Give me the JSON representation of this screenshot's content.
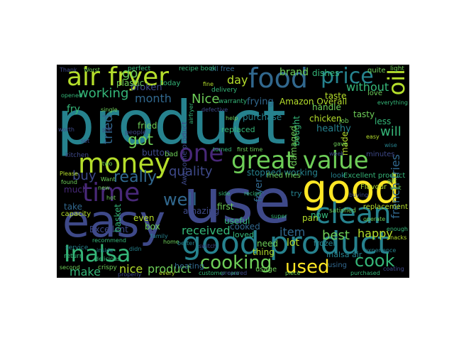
{
  "wordcloud": {
    "background": "#000000",
    "colormap": [
      "#440154",
      "#482878",
      "#3e4989",
      "#31688e",
      "#26828e",
      "#1f9e89",
      "#35b779",
      "#6ece58",
      "#b5de2b",
      "#fde725"
    ],
    "words": [
      {
        "text": "product",
        "color": "#26828e"
      },
      {
        "text": "use",
        "color": "#3e4989"
      },
      {
        "text": "good",
        "color": "#fde725"
      },
      {
        "text": "easy",
        "color": "#3e4989"
      },
      {
        "text": "good product",
        "color": "#26828e"
      },
      {
        "text": "money",
        "color": "#b5de2b"
      },
      {
        "text": "great value",
        "color": "#6ece58"
      },
      {
        "text": "air fryer",
        "color": "#b5de2b"
      },
      {
        "text": "food",
        "color": "#31688e"
      },
      {
        "text": "price",
        "color": "#26828e"
      },
      {
        "text": "time",
        "color": "#482878"
      },
      {
        "text": "clean",
        "color": "#26828e"
      },
      {
        "text": "Inalsa",
        "color": "#35b779"
      },
      {
        "text": "one",
        "color": "#482878"
      },
      {
        "text": "oil",
        "color": "#b5de2b"
      },
      {
        "text": "cooking",
        "color": "#6ece58"
      },
      {
        "text": "used",
        "color": "#fde725"
      },
      {
        "text": "cook",
        "color": "#35b779"
      },
      {
        "text": "well",
        "color": "#31688e"
      },
      {
        "text": "got",
        "color": "#6ece58"
      },
      {
        "text": "working",
        "color": "#35b779"
      },
      {
        "text": "really",
        "color": "#31688e"
      },
      {
        "text": "quality",
        "color": "#3e4989"
      },
      {
        "text": "month",
        "color": "#31688e"
      },
      {
        "text": "Nice",
        "color": "#6ece58"
      },
      {
        "text": "go",
        "color": "#6ece58"
      },
      {
        "text": "tried",
        "color": "#31688e"
      },
      {
        "text": "buy",
        "color": "#3e4989"
      },
      {
        "text": "will",
        "color": "#35b779"
      },
      {
        "text": "french fries",
        "color": "#31688e"
      },
      {
        "text": "received",
        "color": "#35b779"
      },
      {
        "text": "item",
        "color": "#31688e"
      },
      {
        "text": "best",
        "color": "#6ece58"
      },
      {
        "text": "happy",
        "color": "#b5de2b"
      },
      {
        "text": "make",
        "color": "#35b779"
      },
      {
        "text": "nice",
        "color": "#b5de2b"
      },
      {
        "text": "product",
        "color": "#6ece58"
      },
      {
        "text": "lot",
        "color": "#b5de2b"
      },
      {
        "text": "without",
        "color": "#35b779"
      },
      {
        "text": "brand",
        "color": "#6ece58"
      },
      {
        "text": "day",
        "color": "#b5de2b"
      },
      {
        "text": "stopped working",
        "color": "#26828e"
      },
      {
        "text": "Amazon Overall",
        "color": "#b5de2b"
      },
      {
        "text": "dishes",
        "color": "#35b779"
      },
      {
        "text": "oil free",
        "color": "#31688e"
      },
      {
        "text": "recipe book",
        "color": "#35b779"
      },
      {
        "text": "light",
        "color": "#6ece58"
      },
      {
        "text": "perfect",
        "color": "#35b779"
      },
      {
        "text": "broken",
        "color": "#3e4989"
      },
      {
        "text": "plastic",
        "color": "#6ece58"
      },
      {
        "text": "frying",
        "color": "#31688e"
      },
      {
        "text": "taste",
        "color": "#b5de2b"
      },
      {
        "text": "handle",
        "color": "#6ece58"
      },
      {
        "text": "healthy",
        "color": "#26828e"
      },
      {
        "text": "chicken",
        "color": "#b5de2b"
      },
      {
        "text": "tasty",
        "color": "#6ece58"
      },
      {
        "text": "bought",
        "color": "#35b779"
      },
      {
        "text": "purchase",
        "color": "#26828e"
      },
      {
        "text": "fry",
        "color": "#35b779"
      },
      {
        "text": "fried",
        "color": "#6ece58"
      },
      {
        "text": "people",
        "color": "#3e4989"
      },
      {
        "text": "button",
        "color": "#3e4989"
      },
      {
        "text": "bad",
        "color": "#6ece58"
      },
      {
        "text": "even",
        "color": "#b5de2b"
      },
      {
        "text": "box",
        "color": "#6ece58"
      },
      {
        "text": "amazing",
        "color": "#3e4989"
      },
      {
        "text": "fryer",
        "color": "#31688e"
      },
      {
        "text": "first",
        "color": "#6ece58"
      },
      {
        "text": "useful",
        "color": "#35b779"
      },
      {
        "text": "Excellent",
        "color": "#3e4989"
      },
      {
        "text": "much",
        "color": "#482878"
      },
      {
        "text": "take",
        "color": "#31688e"
      },
      {
        "text": "capacity",
        "color": "#b5de2b"
      },
      {
        "text": "basket",
        "color": "#35b779"
      },
      {
        "text": "cooked",
        "color": "#31688e"
      },
      {
        "text": "loved",
        "color": "#35b779"
      },
      {
        "text": "need",
        "color": "#6ece58"
      },
      {
        "text": "thing",
        "color": "#b5de2b"
      },
      {
        "text": "heating",
        "color": "#31688e"
      },
      {
        "text": "usage",
        "color": "#6ece58"
      },
      {
        "text": "crispy",
        "color": "#6ece58"
      },
      {
        "text": "using",
        "color": "#31688e"
      },
      {
        "text": "Inalsa air",
        "color": "#26828e"
      },
      {
        "text": "pan",
        "color": "#b5de2b"
      },
      {
        "text": "frozen",
        "color": "#26828e"
      },
      {
        "text": "now",
        "color": "#35b779"
      },
      {
        "text": "satisfied",
        "color": "#6ece58"
      },
      {
        "text": "look",
        "color": "#26828e"
      },
      {
        "text": "Excellent product",
        "color": "#35b779"
      },
      {
        "text": "try",
        "color": "#26828e"
      },
      {
        "text": "minutes",
        "color": "#3e4989"
      },
      {
        "text": "replacement",
        "color": "#b5de2b"
      },
      {
        "text": "Flavour",
        "color": "#b5de2b"
      },
      {
        "text": "fried fries",
        "color": "#6ece58"
      },
      {
        "text": "replaced",
        "color": "#35b779"
      },
      {
        "text": "damaged",
        "color": "#6ece58"
      },
      {
        "text": "made",
        "color": "#b5de2b"
      },
      {
        "text": "less",
        "color": "#35b779"
      },
      {
        "text": "job",
        "color": "#6ece58"
      },
      {
        "text": "Awesome product",
        "color": "#3e4989"
      },
      {
        "text": "quite",
        "color": "#6ece58"
      },
      {
        "text": "love",
        "color": "#6ece58"
      },
      {
        "text": "delivery",
        "color": "#35b779"
      },
      {
        "text": "warranty",
        "color": "#35b779"
      },
      {
        "text": "service",
        "color": "#26828e"
      },
      {
        "text": "return",
        "color": "#35b779"
      },
      {
        "text": "kitchen",
        "color": "#3e4989"
      },
      {
        "text": "Please",
        "color": "#b5de2b"
      },
      {
        "text": "found",
        "color": "#6ece58"
      },
      {
        "text": "worth",
        "color": "#3e4989"
      },
      {
        "text": "single",
        "color": "#6ece58"
      },
      {
        "text": "today",
        "color": "#35b779"
      },
      {
        "text": "opened",
        "color": "#35b779"
      },
      {
        "text": "second",
        "color": "#6ece58"
      },
      {
        "text": "Thank",
        "color": "#3e4989"
      },
      {
        "text": "Worst",
        "color": "#6ece58"
      },
      {
        "text": "recipe",
        "color": "#35b779"
      },
      {
        "text": "customer care",
        "color": "#35b779"
      },
      {
        "text": "piece",
        "color": "#6ece58"
      },
      {
        "text": "properly",
        "color": "#3e4989"
      },
      {
        "text": "coating",
        "color": "#3e4989"
      },
      {
        "text": "purchased",
        "color": "#35b779"
      },
      {
        "text": "operate",
        "color": "#6ece58"
      },
      {
        "text": "experience",
        "color": "#26828e"
      },
      {
        "text": "inside",
        "color": "#26828e"
      },
      {
        "text": "delicious",
        "color": "#35b779"
      },
      {
        "text": "turned",
        "color": "#35b779"
      },
      {
        "text": "first time",
        "color": "#6ece58"
      },
      {
        "text": "everything",
        "color": "#35b779"
      },
      {
        "text": "defective",
        "color": "#3e4989"
      },
      {
        "text": "gave",
        "color": "#6ece58"
      },
      {
        "text": "help",
        "color": "#6ece58"
      },
      {
        "text": "recommend",
        "color": "#35b779"
      },
      {
        "text": "switch",
        "color": "#3e4989"
      },
      {
        "text": "didn",
        "color": "#26828e"
      },
      {
        "text": "buying",
        "color": "#3e4989"
      },
      {
        "text": "airfryer",
        "color": "#35b779"
      },
      {
        "text": "home",
        "color": "#6ece58"
      },
      {
        "text": "family",
        "color": "#26828e"
      },
      {
        "text": "Want",
        "color": "#6ece58"
      },
      {
        "text": "new",
        "color": "#6ece58"
      },
      {
        "text": "better",
        "color": "#26828e"
      },
      {
        "text": "hot",
        "color": "#6ece58"
      },
      {
        "text": "super",
        "color": "#35b779"
      },
      {
        "text": "wise",
        "color": "#26828e"
      },
      {
        "text": "fine",
        "color": "#b5de2b"
      },
      {
        "text": "still",
        "color": "#3e4989"
      },
      {
        "text": "side",
        "color": "#35b779"
      },
      {
        "text": "set",
        "color": "#3e4989"
      },
      {
        "text": "easy",
        "color": "#b5de2b"
      },
      {
        "text": "week",
        "color": "#3e4989"
      },
      {
        "text": "two",
        "color": "#6ece58"
      },
      {
        "text": "every",
        "color": "#b5de2b"
      },
      {
        "text": "enough",
        "color": "#35b779"
      },
      {
        "text": "snacks",
        "color": "#b5de2b"
      },
      {
        "text": "prepared",
        "color": "#3e4989"
      },
      {
        "text": "gift",
        "color": "#6ece58"
      },
      {
        "text": "unit",
        "color": "#6ece58"
      }
    ]
  }
}
